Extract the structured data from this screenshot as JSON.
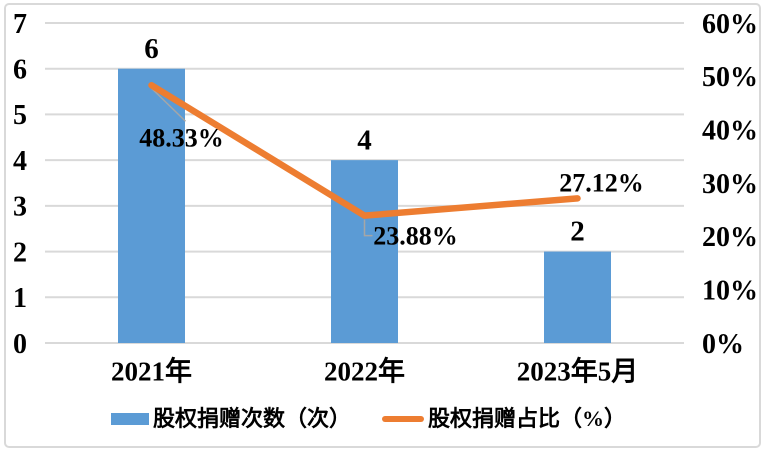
{
  "chart_data": {
    "type": "combo",
    "title": "",
    "categories": [
      "2021年",
      "2022年",
      "2023年5月"
    ],
    "series": [
      {
        "name": "股权捐赠次数（次）",
        "type": "bar",
        "axis": "left",
        "color": "#5B9BD5",
        "values": [
          6,
          4,
          2
        ],
        "data_labels": [
          "6",
          "4",
          "2"
        ]
      },
      {
        "name": "股权捐赠占比（%）",
        "type": "line",
        "axis": "right",
        "color": "#ED7D31",
        "values": [
          48.33,
          23.88,
          27.12
        ],
        "data_labels": [
          "48.33%",
          "23.88%",
          "27.12%"
        ]
      }
    ],
    "left_axis": {
      "min": 0,
      "max": 7,
      "step": 1,
      "tick_labels": [
        "0",
        "1",
        "2",
        "3",
        "4",
        "5",
        "6",
        "7"
      ]
    },
    "right_axis": {
      "min": 0,
      "max": 60,
      "step": 10,
      "tick_labels": [
        "0%",
        "10%",
        "20%",
        "30%",
        "40%",
        "50%",
        "60%"
      ]
    },
    "gridlines": "horizontal, one per left-axis unit",
    "legend_position": "bottom"
  },
  "colors": {
    "bar": "#5B9BD5",
    "line": "#ED7D31",
    "gridline": "#D9D9D9",
    "border": "#D9D9D9",
    "leader_line": "#A6A6A6",
    "text": "#000000",
    "background": "#FFFFFF"
  }
}
